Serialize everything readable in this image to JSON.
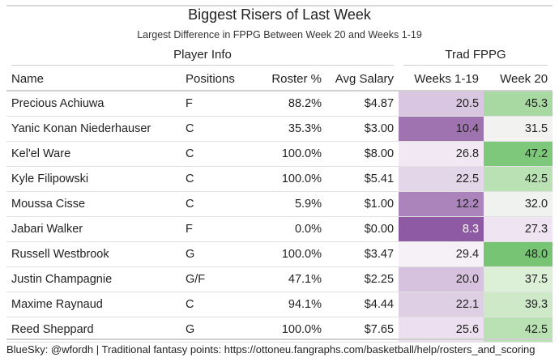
{
  "title": "Biggest Risers of Last Week",
  "subtitle": "Largest Difference in FPPG Between Week 20 and Weeks 1-19",
  "spanners": {
    "player_info": "Player Info",
    "trad_fppg": "Trad FPPG"
  },
  "columns": [
    "Name",
    "Positions",
    "Roster %",
    "Avg Salary",
    "Weeks 1-19",
    "Week 20"
  ],
  "rows": [
    {
      "name": "Precious Achiuwa",
      "pos": "F",
      "roster": "88.2%",
      "salary": "$4.87",
      "w119": "20.5",
      "w20": "45.3",
      "w119_bg": "#d9c6e0",
      "w20_bg": "#a9d9a3",
      "w119_fg": "#222222",
      "w20_fg": "#222222"
    },
    {
      "name": "Yanic Konan Niederhauser",
      "pos": "C",
      "roster": "35.3%",
      "salary": "$3.00",
      "w119": "10.4",
      "w20": "31.5",
      "w119_bg": "#9f72b0",
      "w20_bg": "#f2f3f1",
      "w119_fg": "#222222",
      "w20_fg": "#222222"
    },
    {
      "name": "Kel'el Ware",
      "pos": "C",
      "roster": "100.0%",
      "salary": "$8.00",
      "w119": "26.8",
      "w20": "47.2",
      "w119_bg": "#f1e8f3",
      "w20_bg": "#7dc87a",
      "w119_fg": "#222222",
      "w20_fg": "#222222"
    },
    {
      "name": "Kyle Filipowski",
      "pos": "C",
      "roster": "100.0%",
      "salary": "$5.41",
      "w119": "22.5",
      "w20": "42.5",
      "w119_bg": "#e4d6e9",
      "w20_bg": "#b9e1b3",
      "w119_fg": "#222222",
      "w20_fg": "#222222"
    },
    {
      "name": "Moussa Cisse",
      "pos": "C",
      "roster": "5.9%",
      "salary": "$1.00",
      "w119": "12.2",
      "w20": "32.0",
      "w119_bg": "#ab84bb",
      "w20_bg": "#f0f2ef",
      "w119_fg": "#222222",
      "w20_fg": "#222222"
    },
    {
      "name": "Jabari Walker",
      "pos": "F",
      "roster": "0.0%",
      "salary": "$0.00",
      "w119": "8.3",
      "w20": "27.3",
      "w119_bg": "#8e5aa3",
      "w20_bg": "#efe4f2",
      "w119_fg": "#ffffff",
      "w20_fg": "#222222"
    },
    {
      "name": "Russell Westbrook",
      "pos": "G",
      "roster": "100.0%",
      "salary": "$3.47",
      "w119": "29.4",
      "w20": "48.0",
      "w119_bg": "#f6f1f7",
      "w20_bg": "#77c475",
      "w119_fg": "#222222",
      "w20_fg": "#222222"
    },
    {
      "name": "Justin Champagnie",
      "pos": "G/F",
      "roster": "47.1%",
      "salary": "$2.25",
      "w119": "20.0",
      "w20": "37.5",
      "w119_bg": "#d6c2de",
      "w20_bg": "#dcefd7",
      "w119_fg": "#222222",
      "w20_fg": "#222222"
    },
    {
      "name": "Maxime Raynaud",
      "pos": "C",
      "roster": "94.1%",
      "salary": "$4.44",
      "w119": "22.1",
      "w20": "39.3",
      "w119_bg": "#dfcfe5",
      "w20_bg": "#cde9c8",
      "w119_fg": "#222222",
      "w20_fg": "#222222"
    },
    {
      "name": "Reed Sheppard",
      "pos": "G",
      "roster": "100.0%",
      "salary": "$7.65",
      "w119": "25.6",
      "w20": "42.5",
      "w119_bg": "#ecdff0",
      "w20_bg": "#b9e1b3",
      "w119_fg": "#222222",
      "w20_fg": "#222222"
    }
  ],
  "footer": "BlueSky: @wfordh | Traditional fantasy points: https://ottoneu.fangraphs.com/basketball/help/rosters_and_scoring"
}
